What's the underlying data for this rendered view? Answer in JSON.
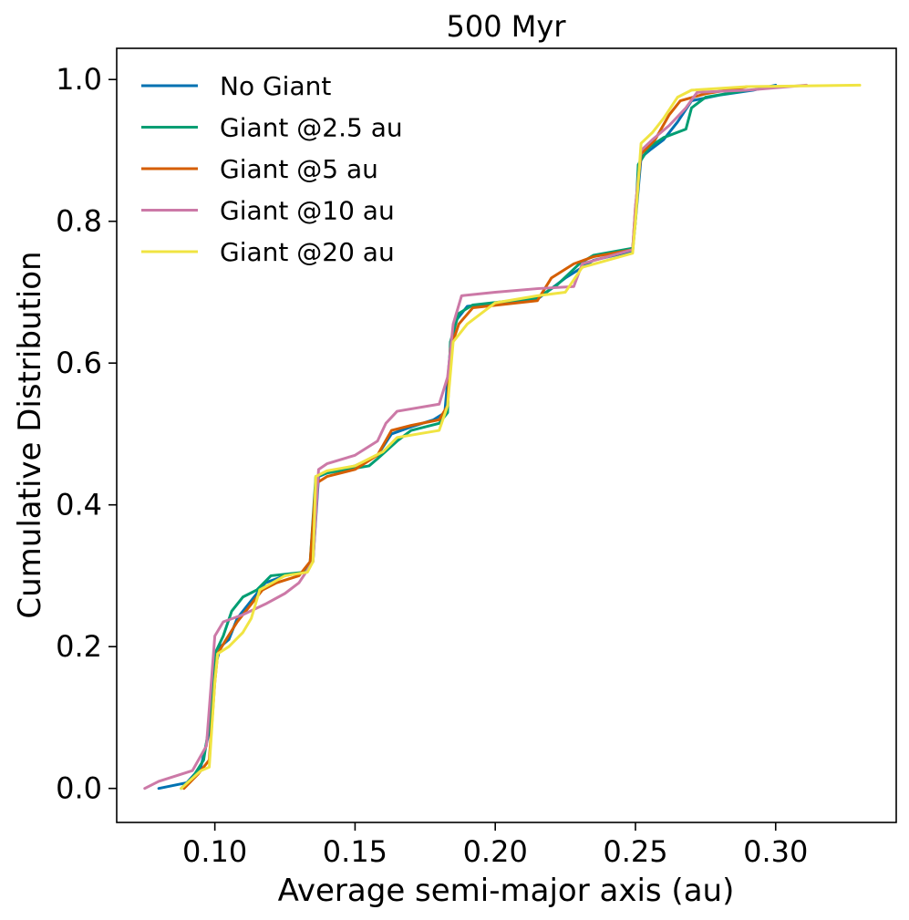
{
  "chart_data": {
    "type": "line",
    "title": "500 Myr",
    "xlabel": "Average semi-major axis (au)",
    "ylabel": "Cumulative Distribution",
    "xlim": [
      0.065,
      0.343
    ],
    "ylim": [
      -0.048,
      1.044
    ],
    "xticks": [
      0.1,
      0.15,
      0.2,
      0.25,
      0.3
    ],
    "xtick_labels": [
      "0.10",
      "0.15",
      "0.20",
      "0.25",
      "0.30"
    ],
    "yticks": [
      0.0,
      0.2,
      0.4,
      0.6,
      0.8,
      1.0
    ],
    "ytick_labels": [
      "0.0",
      "0.2",
      "0.4",
      "0.6",
      "0.8",
      "1.0"
    ],
    "grid": false,
    "legend_position": "top-left",
    "series": [
      {
        "name": "No Giant",
        "color": "#0072B2",
        "points": [
          [
            0.08,
            0.0
          ],
          [
            0.09,
            0.008
          ],
          [
            0.095,
            0.03
          ],
          [
            0.098,
            0.08
          ],
          [
            0.1,
            0.17
          ],
          [
            0.102,
            0.2
          ],
          [
            0.105,
            0.21
          ],
          [
            0.108,
            0.24
          ],
          [
            0.112,
            0.26
          ],
          [
            0.118,
            0.29
          ],
          [
            0.125,
            0.3
          ],
          [
            0.132,
            0.305
          ],
          [
            0.135,
            0.32
          ],
          [
            0.137,
            0.44
          ],
          [
            0.14,
            0.445
          ],
          [
            0.15,
            0.455
          ],
          [
            0.158,
            0.47
          ],
          [
            0.163,
            0.5
          ],
          [
            0.17,
            0.51
          ],
          [
            0.178,
            0.52
          ],
          [
            0.182,
            0.53
          ],
          [
            0.184,
            0.62
          ],
          [
            0.186,
            0.66
          ],
          [
            0.19,
            0.68
          ],
          [
            0.2,
            0.685
          ],
          [
            0.215,
            0.69
          ],
          [
            0.225,
            0.72
          ],
          [
            0.235,
            0.745
          ],
          [
            0.249,
            0.758
          ],
          [
            0.25,
            0.8
          ],
          [
            0.252,
            0.89
          ],
          [
            0.255,
            0.9
          ],
          [
            0.26,
            0.915
          ],
          [
            0.265,
            0.94
          ],
          [
            0.27,
            0.97
          ],
          [
            0.28,
            0.978
          ],
          [
            0.292,
            0.985
          ],
          [
            0.3,
            0.992
          ]
        ]
      },
      {
        "name": "Giant @2.5 au",
        "color": "#009E73",
        "points": [
          [
            0.088,
            0.0
          ],
          [
            0.092,
            0.015
          ],
          [
            0.096,
            0.04
          ],
          [
            0.098,
            0.09
          ],
          [
            0.1,
            0.19
          ],
          [
            0.103,
            0.215
          ],
          [
            0.106,
            0.25
          ],
          [
            0.11,
            0.27
          ],
          [
            0.115,
            0.28
          ],
          [
            0.12,
            0.3
          ],
          [
            0.132,
            0.305
          ],
          [
            0.134,
            0.32
          ],
          [
            0.136,
            0.44
          ],
          [
            0.14,
            0.445
          ],
          [
            0.155,
            0.455
          ],
          [
            0.158,
            0.465
          ],
          [
            0.165,
            0.49
          ],
          [
            0.17,
            0.505
          ],
          [
            0.18,
            0.515
          ],
          [
            0.183,
            0.53
          ],
          [
            0.184,
            0.63
          ],
          [
            0.187,
            0.67
          ],
          [
            0.192,
            0.682
          ],
          [
            0.215,
            0.692
          ],
          [
            0.222,
            0.71
          ],
          [
            0.23,
            0.74
          ],
          [
            0.235,
            0.752
          ],
          [
            0.249,
            0.762
          ],
          [
            0.25,
            0.8
          ],
          [
            0.251,
            0.88
          ],
          [
            0.255,
            0.905
          ],
          [
            0.26,
            0.918
          ],
          [
            0.268,
            0.93
          ],
          [
            0.27,
            0.96
          ],
          [
            0.275,
            0.975
          ],
          [
            0.29,
            0.985
          ]
        ]
      },
      {
        "name": "Giant @5 au",
        "color": "#D55E00",
        "points": [
          [
            0.089,
            0.0
          ],
          [
            0.094,
            0.02
          ],
          [
            0.098,
            0.04
          ],
          [
            0.1,
            0.15
          ],
          [
            0.101,
            0.19
          ],
          [
            0.104,
            0.21
          ],
          [
            0.108,
            0.235
          ],
          [
            0.113,
            0.26
          ],
          [
            0.117,
            0.28
          ],
          [
            0.122,
            0.29
          ],
          [
            0.13,
            0.3
          ],
          [
            0.134,
            0.32
          ],
          [
            0.136,
            0.43
          ],
          [
            0.14,
            0.44
          ],
          [
            0.15,
            0.45
          ],
          [
            0.158,
            0.47
          ],
          [
            0.163,
            0.505
          ],
          [
            0.17,
            0.512
          ],
          [
            0.18,
            0.52
          ],
          [
            0.183,
            0.54
          ],
          [
            0.184,
            0.62
          ],
          [
            0.187,
            0.655
          ],
          [
            0.192,
            0.678
          ],
          [
            0.215,
            0.688
          ],
          [
            0.22,
            0.72
          ],
          [
            0.228,
            0.74
          ],
          [
            0.235,
            0.75
          ],
          [
            0.249,
            0.76
          ],
          [
            0.25,
            0.82
          ],
          [
            0.252,
            0.895
          ],
          [
            0.257,
            0.915
          ],
          [
            0.262,
            0.95
          ],
          [
            0.266,
            0.97
          ],
          [
            0.275,
            0.98
          ],
          [
            0.29,
            0.99
          ]
        ]
      },
      {
        "name": "Giant @10 au",
        "color": "#CC79A7",
        "points": [
          [
            0.075,
            0.0
          ],
          [
            0.08,
            0.01
          ],
          [
            0.092,
            0.025
          ],
          [
            0.097,
            0.06
          ],
          [
            0.1,
            0.215
          ],
          [
            0.103,
            0.235
          ],
          [
            0.11,
            0.245
          ],
          [
            0.118,
            0.26
          ],
          [
            0.125,
            0.275
          ],
          [
            0.13,
            0.29
          ],
          [
            0.135,
            0.32
          ],
          [
            0.137,
            0.45
          ],
          [
            0.14,
            0.458
          ],
          [
            0.15,
            0.47
          ],
          [
            0.158,
            0.49
          ],
          [
            0.161,
            0.515
          ],
          [
            0.165,
            0.532
          ],
          [
            0.18,
            0.542
          ],
          [
            0.183,
            0.58
          ],
          [
            0.185,
            0.655
          ],
          [
            0.188,
            0.695
          ],
          [
            0.2,
            0.7
          ],
          [
            0.215,
            0.705
          ],
          [
            0.228,
            0.708
          ],
          [
            0.231,
            0.74
          ],
          [
            0.249,
            0.76
          ],
          [
            0.25,
            0.82
          ],
          [
            0.252,
            0.9
          ],
          [
            0.256,
            0.915
          ],
          [
            0.262,
            0.935
          ],
          [
            0.268,
            0.96
          ],
          [
            0.272,
            0.982
          ],
          [
            0.29,
            0.985
          ],
          [
            0.311,
            0.992
          ]
        ]
      },
      {
        "name": "Giant @20 au",
        "color": "#F0E442",
        "points": [
          [
            0.088,
            0.0
          ],
          [
            0.095,
            0.025
          ],
          [
            0.098,
            0.03
          ],
          [
            0.1,
            0.15
          ],
          [
            0.101,
            0.19
          ],
          [
            0.105,
            0.2
          ],
          [
            0.11,
            0.22
          ],
          [
            0.113,
            0.24
          ],
          [
            0.116,
            0.28
          ],
          [
            0.125,
            0.3
          ],
          [
            0.133,
            0.305
          ],
          [
            0.135,
            0.32
          ],
          [
            0.136,
            0.44
          ],
          [
            0.14,
            0.448
          ],
          [
            0.15,
            0.455
          ],
          [
            0.16,
            0.475
          ],
          [
            0.165,
            0.495
          ],
          [
            0.18,
            0.505
          ],
          [
            0.183,
            0.54
          ],
          [
            0.185,
            0.63
          ],
          [
            0.19,
            0.655
          ],
          [
            0.2,
            0.685
          ],
          [
            0.215,
            0.695
          ],
          [
            0.225,
            0.7
          ],
          [
            0.231,
            0.735
          ],
          [
            0.249,
            0.755
          ],
          [
            0.25,
            0.8
          ],
          [
            0.252,
            0.91
          ],
          [
            0.256,
            0.925
          ],
          [
            0.26,
            0.945
          ],
          [
            0.265,
            0.975
          ],
          [
            0.27,
            0.985
          ],
          [
            0.29,
            0.99
          ],
          [
            0.33,
            0.992
          ]
        ]
      }
    ]
  }
}
